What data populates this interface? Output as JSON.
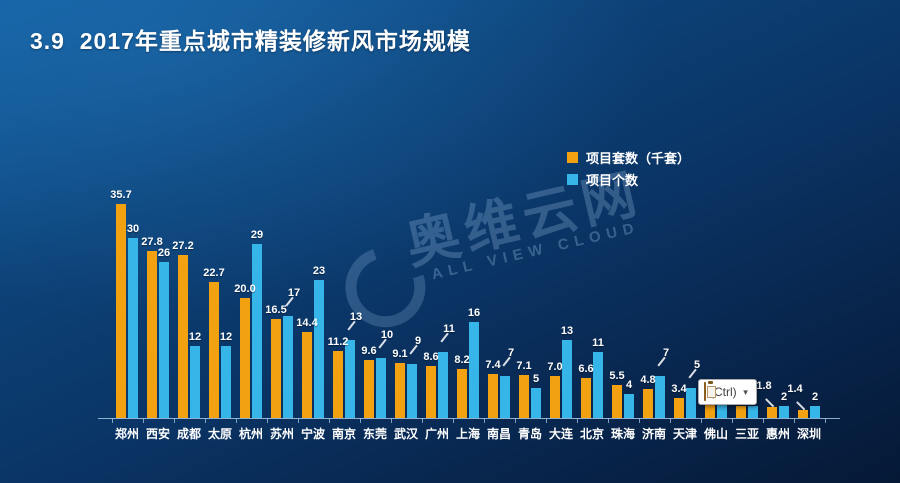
{
  "slide": {
    "title": "3.9  2017年重点城市精装修新风市场规模"
  },
  "legend": [
    {
      "label": "项目套数（千套）",
      "color": "#F2A110"
    },
    {
      "label": "项目个数",
      "color": "#36B5E8"
    }
  ],
  "watermark": {
    "text": "奥维云网",
    "subtext": "ALL VIEW CLOUD"
  },
  "paste_popup": {
    "label": "(Ctrl)",
    "dropdown_arrow": "▼",
    "icon": "clipboard-icon"
  },
  "chart_data": {
    "type": "bar",
    "title": "2017年重点城市精装修新风市场规模",
    "categories": [
      "郑州",
      "西安",
      "成都",
      "太原",
      "杭州",
      "苏州",
      "宁波",
      "南京",
      "东莞",
      "武汉",
      "广州",
      "上海",
      "南昌",
      "青岛",
      "大连",
      "北京",
      "珠海",
      "济南",
      "天津",
      "佛山",
      "三亚",
      "惠州",
      "深圳"
    ],
    "series": [
      {
        "name": "项目套数（千套）",
        "color": "#F2A110",
        "values": [
          35.7,
          27.8,
          27.2,
          22.7,
          20.0,
          16.5,
          14.4,
          11.2,
          9.6,
          9.1,
          8.6,
          8.2,
          7.4,
          7.1,
          7.0,
          6.6,
          5.5,
          4.8,
          3.4,
          3.3,
          2.0,
          1.8,
          1.4
        ],
        "labels": [
          "35.7",
          "27.8",
          "27.2",
          "22.7",
          "20.0",
          "16.5",
          "14.4",
          "11.2",
          "9.6",
          "9.1",
          "8.6",
          "8.2",
          "7.4",
          "7.1",
          "7.0",
          "6.6",
          "5.5",
          "4.8",
          "3.4",
          "3.3",
          "",
          "1.8",
          "1.4"
        ]
      },
      {
        "name": "项目个数",
        "color": "#36B5E8",
        "values": [
          30,
          26,
          12,
          12,
          29,
          17,
          23,
          13,
          10,
          9,
          11,
          16,
          7,
          5,
          13,
          11,
          4,
          7,
          5,
          3,
          2,
          2,
          2
        ],
        "labels": [
          "30",
          "26",
          "12",
          "12",
          "29",
          "17",
          "23",
          "13",
          "10",
          "9",
          "11",
          "16",
          "7",
          "5",
          "13",
          "11",
          "4",
          "7",
          "5",
          "",
          "",
          "2",
          "2"
        ]
      }
    ],
    "ylim": [
      0,
      38
    ],
    "grid": false,
    "legend_position": "top-right"
  }
}
